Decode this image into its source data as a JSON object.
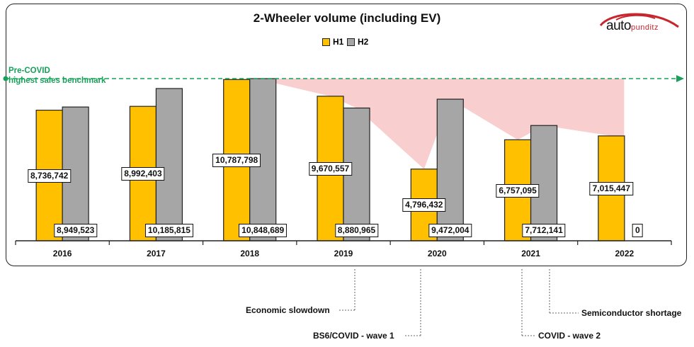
{
  "chart_data": {
    "type": "bar",
    "title": "2-Wheeler volume (including EV)",
    "categories": [
      "2016",
      "2017",
      "2018",
      "2019",
      "2020",
      "2021",
      "2022"
    ],
    "series": [
      {
        "name": "H1",
        "color": "#FFC000",
        "values": [
          8736742,
          8992403,
          10787798,
          9670557,
          4796432,
          6757095,
          7015447
        ],
        "labels": [
          "8,736,742",
          "8,992,403",
          "10,787,798",
          "9,670,557",
          "4,796,432",
          "6,757,095",
          "7,015,447"
        ]
      },
      {
        "name": "H2",
        "color": "#A6A6A6",
        "values": [
          8949523,
          10185815,
          10848689,
          8880965,
          9472004,
          7712141,
          0
        ],
        "labels": [
          "8,949,523",
          "10,185,815",
          "10,848,689",
          "8,880,965",
          "9,472,004",
          "7,712,141",
          "0"
        ]
      }
    ],
    "ylim": [
      0,
      10848689
    ],
    "benchmark": {
      "value": 10848689,
      "label_line1": "Pre-COVID",
      "label_line2": "highest sales benchmark",
      "color": "#17A05A"
    },
    "annotations": [
      {
        "text": "Economic slowdown",
        "category": "2019"
      },
      {
        "text": "BS6/COVID - wave 1",
        "category": "2020"
      },
      {
        "text": "COVID - wave 2",
        "category": "2021"
      },
      {
        "text": "Semiconductor shortage",
        "category": "2021"
      }
    ]
  },
  "logo": {
    "main": "auto",
    "sub": "punditz"
  }
}
